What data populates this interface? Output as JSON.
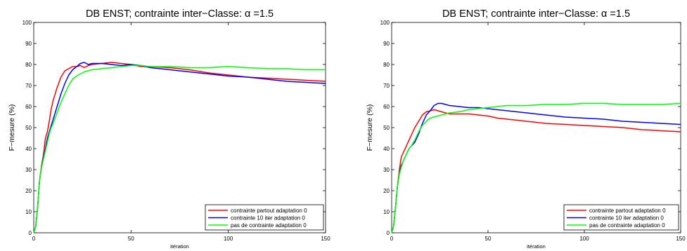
{
  "chart_data": [
    {
      "type": "line",
      "title": "DB ENST; contrainte inter−Classe: α =1.5",
      "xlabel": "itération",
      "ylabel": "F−mesure (%)",
      "xlim": [
        0,
        150
      ],
      "ylim": [
        0,
        100
      ],
      "xticks": [
        0,
        50,
        100,
        150
      ],
      "yticks": [
        0,
        10,
        20,
        30,
        40,
        50,
        60,
        70,
        80,
        90,
        100
      ],
      "grid": false,
      "legend": "bottom-right",
      "series": [
        {
          "name": "contrainte partout adaptation 0",
          "color": "#ff0000",
          "x": [
            0,
            1,
            2,
            3,
            4,
            5,
            6,
            7,
            8,
            9,
            10,
            12,
            14,
            16,
            18,
            20,
            22,
            24,
            26,
            28,
            30,
            35,
            40,
            45,
            50,
            55,
            60,
            70,
            80,
            90,
            100,
            110,
            120,
            130,
            140,
            150
          ],
          "y": [
            0,
            3,
            12,
            25,
            32,
            37,
            45,
            48,
            53,
            59,
            63,
            69,
            74,
            77,
            78,
            79,
            79,
            79.5,
            78.5,
            79.5,
            80,
            80.5,
            81,
            80.5,
            80,
            79,
            79,
            78.5,
            77.5,
            76,
            75,
            74,
            73.5,
            73,
            72.5,
            72
          ]
        },
        {
          "name": "contrainte 10 iter adaptation 0",
          "color": "#0000ff",
          "x": [
            0,
            1,
            2,
            3,
            4,
            5,
            6,
            7,
            8,
            9,
            10,
            12,
            14,
            16,
            18,
            20,
            22,
            24,
            26,
            28,
            30,
            35,
            40,
            45,
            50,
            55,
            60,
            70,
            80,
            90,
            100,
            110,
            120,
            130,
            140,
            150
          ],
          "y": [
            0,
            3,
            12,
            25,
            31,
            36,
            40,
            45,
            48,
            51,
            54,
            60,
            66,
            71,
            75,
            77.5,
            79,
            80.5,
            81,
            80,
            80.5,
            80.5,
            80,
            79.5,
            80,
            79.5,
            78.5,
            77.5,
            76.5,
            75.5,
            74.5,
            74,
            73,
            72,
            71.5,
            71
          ]
        },
        {
          "name": "pas de contrainte adaptation 0",
          "color": "#00ff00",
          "x": [
            0,
            1,
            2,
            3,
            4,
            5,
            6,
            7,
            8,
            9,
            10,
            12,
            14,
            16,
            18,
            20,
            22,
            24,
            26,
            28,
            30,
            35,
            40,
            45,
            50,
            55,
            60,
            70,
            80,
            90,
            100,
            110,
            120,
            130,
            140,
            150
          ],
          "y": [
            0,
            3,
            12,
            25,
            31,
            35,
            39,
            43,
            47,
            50,
            52,
            57,
            62,
            66,
            70,
            73,
            74.5,
            75.5,
            76.5,
            77,
            77.5,
            78,
            78.5,
            79,
            79.5,
            79.5,
            79,
            79,
            78.5,
            78.5,
            79,
            78.5,
            78,
            78,
            77.5,
            77.5
          ]
        }
      ]
    },
    {
      "type": "line",
      "title": "DB ENST; contrainte inter−Classe: α =1.5",
      "xlabel": "itération",
      "ylabel": "F−mesure (%)",
      "xlim": [
        0,
        150
      ],
      "ylim": [
        0,
        100
      ],
      "xticks": [
        0,
        50,
        100,
        150
      ],
      "yticks": [
        0,
        10,
        20,
        30,
        40,
        50,
        60,
        70,
        80,
        90,
        100
      ],
      "grid": false,
      "legend": "bottom-right",
      "series": [
        {
          "name": "contrainte partout adaptation 0",
          "color": "#ff0000",
          "x": [
            0,
            1,
            2,
            3,
            4,
            5,
            6,
            7,
            8,
            9,
            10,
            12,
            14,
            16,
            18,
            20,
            22,
            24,
            26,
            28,
            30,
            35,
            40,
            45,
            50,
            55,
            60,
            70,
            80,
            90,
            100,
            110,
            120,
            130,
            140,
            150
          ],
          "y": [
            0,
            3,
            12,
            22,
            30,
            36,
            38,
            40,
            42,
            44,
            46,
            50,
            53,
            56,
            57.5,
            58,
            58.5,
            58,
            57.5,
            57,
            56.5,
            56.5,
            56.5,
            56,
            55.5,
            54.5,
            54,
            53,
            52,
            51.5,
            51,
            50.5,
            50,
            49,
            48.5,
            48
          ]
        },
        {
          "name": "contrainte 10 iter adaptation 0",
          "color": "#0000ff",
          "x": [
            0,
            1,
            2,
            3,
            4,
            5,
            6,
            7,
            8,
            9,
            10,
            12,
            14,
            16,
            18,
            20,
            22,
            24,
            26,
            28,
            30,
            35,
            40,
            45,
            50,
            55,
            60,
            70,
            80,
            90,
            100,
            110,
            120,
            130,
            140,
            150
          ],
          "y": [
            0,
            3,
            12,
            22,
            28,
            32,
            34,
            36,
            38,
            40,
            41,
            43,
            47,
            52,
            56,
            58,
            60.5,
            61.5,
            61.5,
            61,
            60.5,
            60,
            59.5,
            59.5,
            59,
            58.5,
            58,
            57,
            56,
            55,
            54.5,
            54,
            53,
            52.5,
            52,
            51.5
          ]
        },
        {
          "name": "pas de contrainte adaptation 0",
          "color": "#00ff00",
          "x": [
            0,
            1,
            2,
            3,
            4,
            5,
            6,
            7,
            8,
            9,
            10,
            12,
            14,
            16,
            18,
            20,
            22,
            24,
            26,
            28,
            30,
            35,
            40,
            45,
            50,
            55,
            60,
            70,
            80,
            90,
            100,
            110,
            120,
            130,
            140,
            150
          ],
          "y": [
            0,
            3,
            12,
            22,
            28,
            31,
            34,
            36,
            38,
            40,
            41,
            44,
            48,
            51,
            53,
            54.5,
            55,
            55.5,
            56,
            56.5,
            57,
            57.5,
            58.5,
            59,
            59.5,
            60,
            60.5,
            60.5,
            61,
            61,
            61.5,
            61.5,
            61,
            61,
            61,
            61.5
          ]
        }
      ]
    }
  ]
}
